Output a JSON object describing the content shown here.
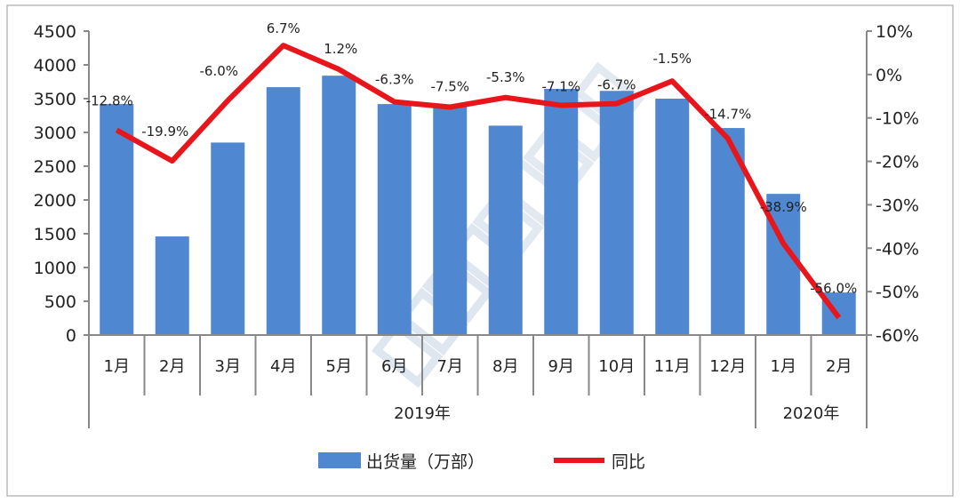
{
  "chart_data": {
    "type": "bar+line",
    "categories": [
      "1月",
      "2月",
      "3月",
      "4月",
      "5月",
      "6月",
      "7月",
      "8月",
      "9月",
      "10月",
      "11月",
      "12月",
      "1月",
      "2月"
    ],
    "groups": [
      {
        "label": "2019年",
        "count": 12
      },
      {
        "label": "2020年",
        "count": 2
      }
    ],
    "series": [
      {
        "name": "出货量（万部）",
        "type": "bar",
        "axis": "left",
        "color": "#4f88d0",
        "values": [
          3420,
          1460,
          2850,
          3670,
          3840,
          3420,
          3380,
          3100,
          3645,
          3615,
          3500,
          3065,
          2090,
          630
        ]
      },
      {
        "name": "同比",
        "type": "line",
        "axis": "right",
        "color": "#e8161b",
        "values": [
          -12.8,
          -19.9,
          -6.0,
          6.7,
          1.2,
          -6.3,
          -7.5,
          -5.3,
          -7.1,
          -6.7,
          -1.5,
          -14.7,
          -38.9,
          -56.0
        ],
        "labels": [
          "-12.8%",
          "-19.9%",
          "-6.0%",
          "6.7%",
          "1.2%",
          "-6.3%",
          "-7.5%",
          "-5.3%",
          "-7.1%",
          "-6.7%",
          "-1.5%",
          "-14.7%",
          "-38.9%",
          "-56.0%"
        ]
      }
    ],
    "left_axis": {
      "ylim": [
        0,
        4500
      ],
      "ticks": [
        "0",
        "500",
        "1000",
        "1500",
        "2000",
        "2500",
        "3000",
        "3500",
        "4000",
        "4500"
      ]
    },
    "right_axis": {
      "ylim": [
        -60,
        10
      ],
      "ticks": [
        "-60%",
        "-50%",
        "-40%",
        "-30%",
        "-20%",
        "-10%",
        "0%",
        "10%"
      ]
    },
    "grid": false,
    "legend": "bottom",
    "watermark": "CAICT 中国信通院"
  }
}
